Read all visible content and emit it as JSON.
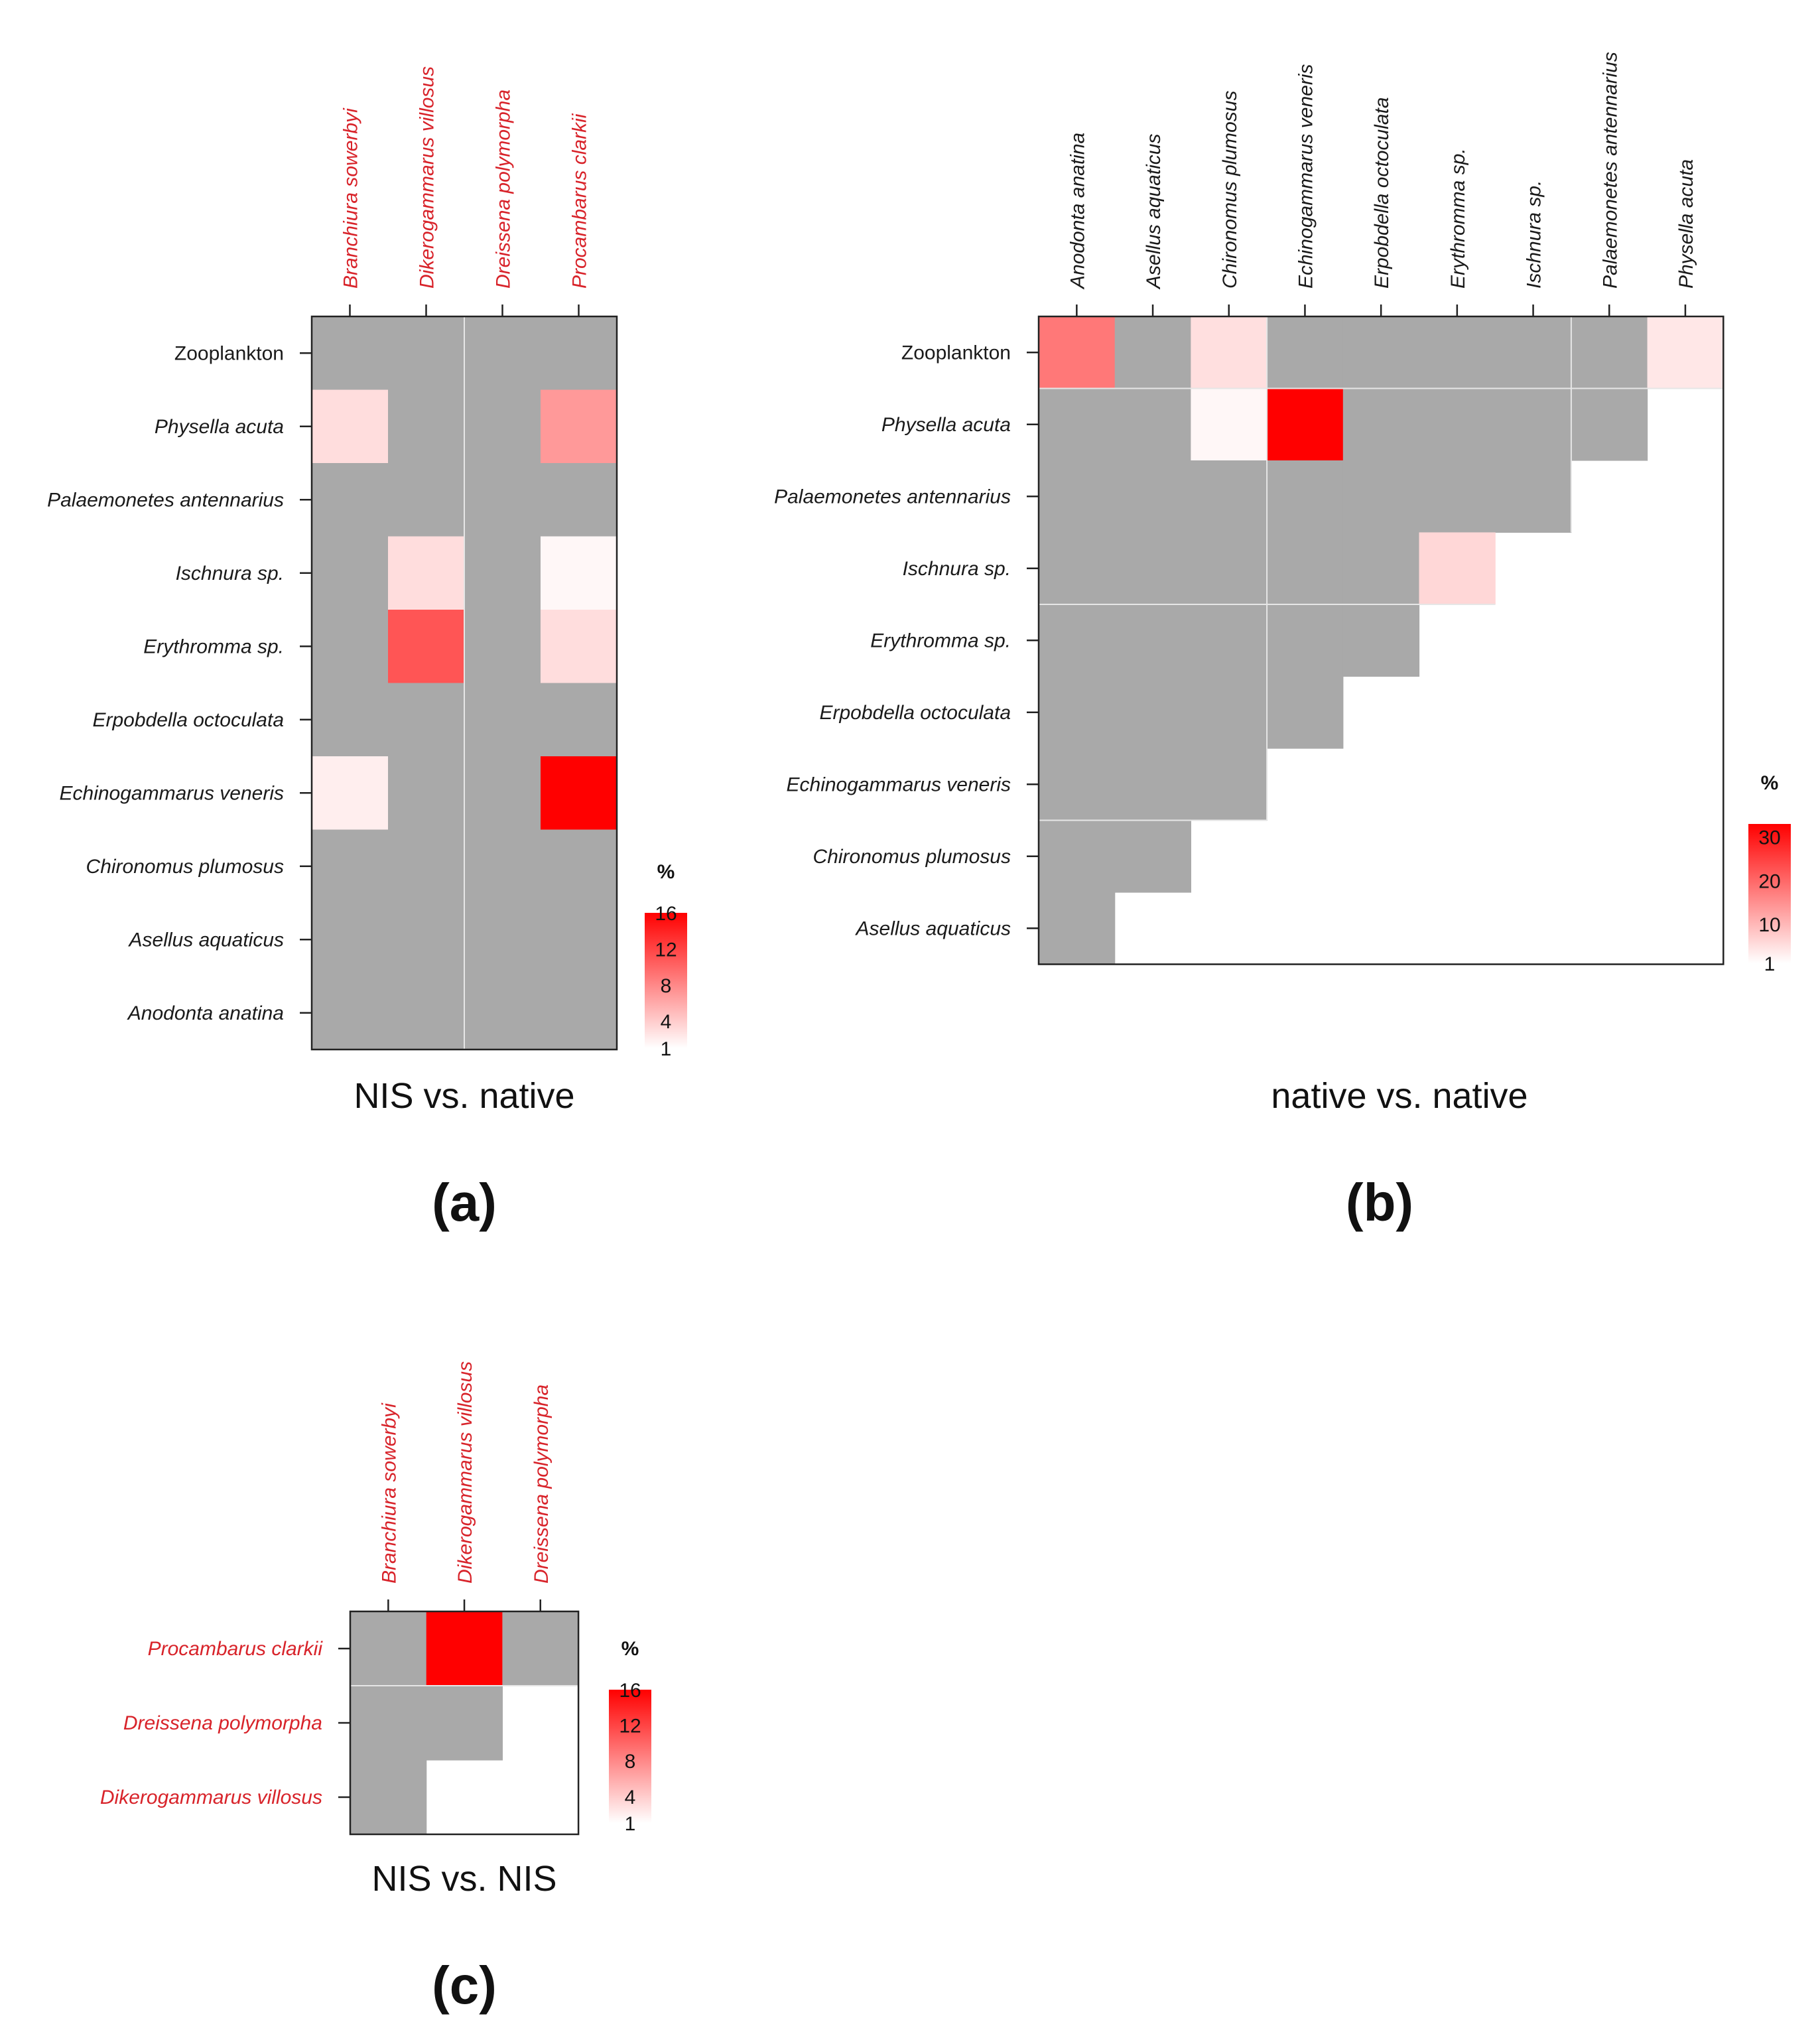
{
  "colors": {
    "na": "#a9a9a9",
    "low": "#ffffff",
    "high": "#ff0000",
    "nis": "#d8232a",
    "native": "#1a1a1a",
    "divider": "#e6e6e6"
  },
  "chart_data": [
    {
      "id": "a",
      "type": "heatmap",
      "title": "NIS vs. native",
      "label": "(a)",
      "xlabel": "",
      "ylabel": "",
      "columns": [
        "Branchiura sowerbyi",
        "Dikerogammarus villosus",
        "Dreissena polymorpha",
        "Procambarus clarkii"
      ],
      "column_group": "NIS",
      "rows": [
        "Zooplankton",
        "Physella acuta",
        "Palaemonetes antennarius",
        "Ischnura sp.",
        "Erythromma sp.",
        "Erpobdella octoculata",
        "Echinogammarus veneris",
        "Chironomus plumosus",
        "Asellus aquaticus",
        "Anodonta anatina"
      ],
      "row_group": "native",
      "values": [
        [
          null,
          null,
          null,
          null
        ],
        [
          3,
          null,
          null,
          7
        ],
        [
          null,
          null,
          null,
          null
        ],
        [
          null,
          3,
          null,
          1.5
        ],
        [
          null,
          11,
          null,
          3
        ],
        [
          null,
          null,
          null,
          null
        ],
        [
          2,
          null,
          null,
          16
        ],
        [
          null,
          null,
          null,
          null
        ],
        [
          null,
          null,
          null,
          null
        ],
        [
          null,
          null,
          null,
          null
        ]
      ],
      "legend": {
        "title": "%",
        "ticks": [
          1,
          4,
          8,
          12,
          16
        ],
        "range": [
          1,
          16
        ]
      },
      "dividers": {
        "cols_after": [
          2
        ],
        "rows_after": []
      }
    },
    {
      "id": "b",
      "type": "heatmap",
      "title": "native vs. native",
      "label": "(b)",
      "xlabel": "",
      "ylabel": "",
      "columns": [
        "Anodonta anatina",
        "Asellus aquaticus",
        "Chironomus plumosus",
        "Echinogammarus veneris",
        "Erpobdella octoculata",
        "Erythromma sp.",
        "Ischnura sp.",
        "Palaemonetes antennarius",
        "Physella acuta"
      ],
      "column_group": "native",
      "rows": [
        "Zooplankton",
        "Physella acuta",
        "Palaemonetes antennarius",
        "Ischnura sp.",
        "Erythromma sp.",
        "Erpobdella octoculata",
        "Echinogammarus veneris",
        "Chironomus plumosus",
        "Asellus aquaticus"
      ],
      "row_group": "native",
      "values": [
        [
          18,
          null,
          5,
          null,
          null,
          null,
          null,
          null,
          4
        ],
        [
          null,
          null,
          2,
          33,
          null,
          null,
          null,
          null,
          "blank"
        ],
        [
          null,
          null,
          null,
          null,
          null,
          null,
          null,
          "blank",
          "blank"
        ],
        [
          null,
          null,
          null,
          null,
          null,
          6,
          "blank",
          "blank",
          "blank"
        ],
        [
          null,
          null,
          null,
          null,
          null,
          "blank",
          "blank",
          "blank",
          "blank"
        ],
        [
          null,
          null,
          null,
          null,
          "blank",
          "blank",
          "blank",
          "blank",
          "blank"
        ],
        [
          null,
          null,
          null,
          "blank",
          "blank",
          "blank",
          "blank",
          "blank",
          "blank"
        ],
        [
          null,
          null,
          "blank",
          "blank",
          "blank",
          "blank",
          "blank",
          "blank",
          "blank"
        ],
        [
          null,
          "blank",
          "blank",
          "blank",
          "blank",
          "blank",
          "blank",
          "blank",
          "blank"
        ]
      ],
      "legend": {
        "title": "%",
        "ticks": [
          1,
          10,
          20,
          30
        ],
        "range": [
          1,
          33
        ]
      },
      "dividers": {
        "cols_after": [
          3,
          7
        ],
        "rows_after": [
          1,
          4,
          7
        ]
      }
    },
    {
      "id": "c",
      "type": "heatmap",
      "title": "NIS vs. NIS",
      "label": "(c)",
      "xlabel": "",
      "ylabel": "",
      "columns": [
        "Branchiura sowerbyi",
        "Dikerogammarus villosus",
        "Dreissena polymorpha"
      ],
      "column_group": "NIS",
      "rows": [
        "Procambarus clarkii",
        "Dreissena polymorpha",
        "Dikerogammarus villosus"
      ],
      "row_group": "NIS",
      "values": [
        [
          null,
          16,
          null
        ],
        [
          null,
          null,
          "blank"
        ],
        [
          null,
          "blank",
          "blank"
        ]
      ],
      "legend": {
        "title": "%",
        "ticks": [
          1,
          4,
          8,
          12,
          16
        ],
        "range": [
          1,
          16
        ]
      },
      "dividers": {
        "cols_after": [],
        "rows_after": [
          1
        ]
      }
    }
  ]
}
